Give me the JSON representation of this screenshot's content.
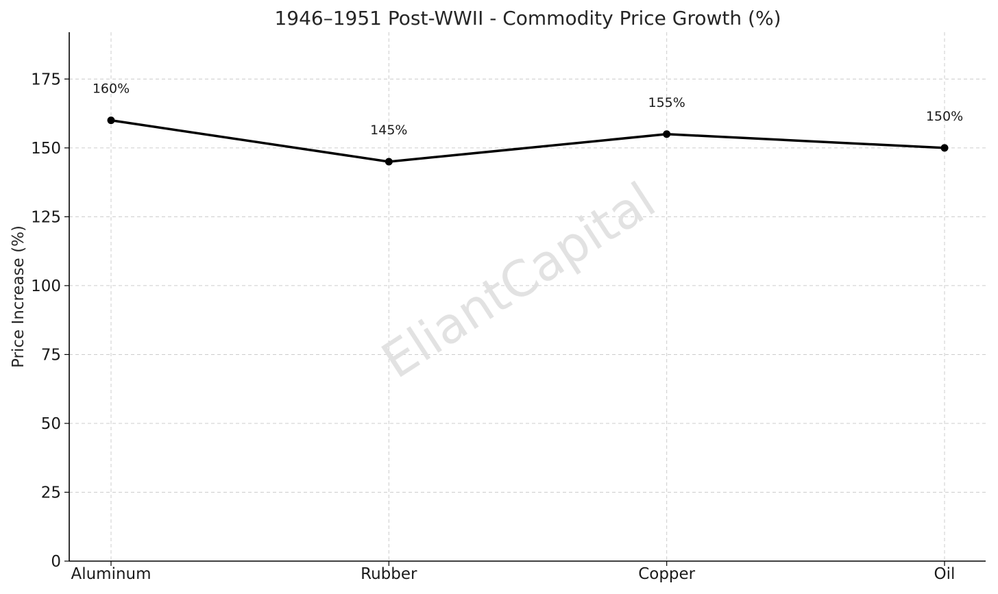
{
  "chart_data": {
    "type": "line",
    "title": "1946–1951 Post-WWII - Commodity Price Growth (%)",
    "xlabel": "",
    "ylabel": "Price Increase (%)",
    "categories": [
      "Aluminum",
      "Rubber",
      "Copper",
      "Oil"
    ],
    "series": [
      {
        "values": [
          160,
          145,
          155,
          150
        ],
        "color": "#000000",
        "data_labels": [
          "160%",
          "145%",
          "155%",
          "150%"
        ]
      }
    ],
    "ylim": [
      0,
      192
    ],
    "yticks": [
      0,
      25,
      50,
      75,
      100,
      125,
      150,
      175
    ],
    "ytick_labels": [
      "0",
      "25",
      "50",
      "75",
      "100",
      "125",
      "150",
      "175"
    ],
    "grid": true,
    "legend": "none",
    "watermark": "EliantCapital"
  }
}
